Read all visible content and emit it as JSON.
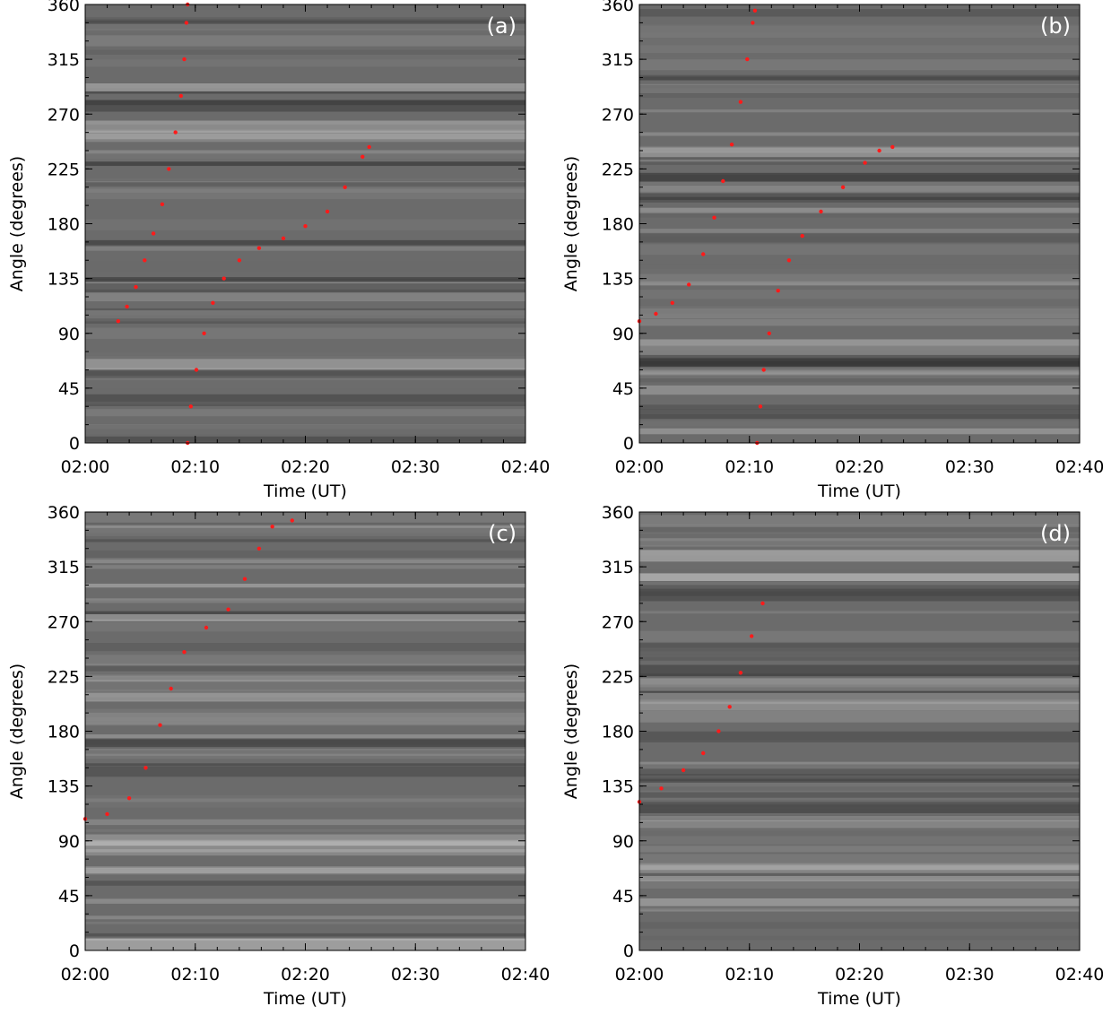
{
  "figure": {
    "background": "#ffffff",
    "map_color": "#6b6b6b",
    "track_color": "#ff1a1a"
  },
  "chart_data": [
    {
      "type": "scatter",
      "panel_label": "(a)",
      "xlabel": "Time (UT)",
      "ylabel": "Angle (degrees)",
      "xlim": [
        "02:00",
        "02:40"
      ],
      "ylim": [
        0,
        360
      ],
      "xticks": [
        "02:00",
        "02:10",
        "02:20",
        "02:30",
        "02:40"
      ],
      "yticks": [
        "0",
        "45",
        "90",
        "135",
        "180",
        "225",
        "270",
        "315",
        "360"
      ],
      "series": [
        {
          "points": [
            [
              3.0,
              100
            ],
            [
              3.8,
              112
            ],
            [
              4.6,
              128
            ],
            [
              5.4,
              150
            ],
            [
              6.2,
              172
            ],
            [
              7.0,
              196
            ],
            [
              7.6,
              225
            ],
            [
              8.2,
              255
            ],
            [
              8.7,
              285
            ],
            [
              9.0,
              315
            ],
            [
              9.2,
              345
            ],
            [
              9.3,
              360
            ]
          ]
        },
        {
          "points": [
            [
              9.3,
              0
            ],
            [
              9.6,
              30
            ],
            [
              10.1,
              60
            ],
            [
              10.8,
              90
            ],
            [
              11.6,
              115
            ],
            [
              12.6,
              135
            ],
            [
              14.0,
              150
            ],
            [
              15.8,
              160
            ],
            [
              18.0,
              168
            ],
            [
              20.0,
              178
            ],
            [
              22.0,
              190
            ],
            [
              23.6,
              210
            ],
            [
              25.2,
              235
            ],
            [
              25.8,
              243
            ]
          ]
        }
      ]
    },
    {
      "type": "scatter",
      "panel_label": "(b)",
      "xlabel": "Time (UT)",
      "ylabel": "Angle (degrees)",
      "xlim": [
        "02:00",
        "02:40"
      ],
      "ylim": [
        0,
        360
      ],
      "xticks": [
        "02:00",
        "02:10",
        "02:20",
        "02:30",
        "02:40"
      ],
      "yticks": [
        "0",
        "45",
        "90",
        "135",
        "180",
        "225",
        "270",
        "315",
        "360"
      ],
      "series": [
        {
          "points": [
            [
              0.0,
              100
            ],
            [
              1.5,
              106
            ],
            [
              3.0,
              115
            ],
            [
              4.5,
              130
            ],
            [
              5.8,
              155
            ],
            [
              6.8,
              185
            ],
            [
              7.6,
              215
            ],
            [
              8.4,
              245
            ],
            [
              9.2,
              280
            ],
            [
              9.8,
              315
            ],
            [
              10.3,
              345
            ],
            [
              10.5,
              355
            ]
          ]
        },
        {
          "points": [
            [
              10.7,
              0
            ],
            [
              11.0,
              30
            ],
            [
              11.3,
              60
            ],
            [
              11.8,
              90
            ],
            [
              12.6,
              125
            ],
            [
              13.6,
              150
            ],
            [
              14.8,
              170
            ],
            [
              16.5,
              190
            ],
            [
              18.5,
              210
            ],
            [
              20.5,
              230
            ],
            [
              21.8,
              240
            ],
            [
              23.0,
              243
            ]
          ]
        }
      ]
    },
    {
      "type": "scatter",
      "panel_label": "(c)",
      "xlabel": "Time (UT)",
      "ylabel": "Angle (degrees)",
      "xlim": [
        "02:00",
        "02:40"
      ],
      "ylim": [
        0,
        360
      ],
      "xticks": [
        "02:00",
        "02:10",
        "02:20",
        "02:30",
        "02:40"
      ],
      "yticks": [
        "0",
        "45",
        "90",
        "135",
        "180",
        "225",
        "270",
        "315",
        "360"
      ],
      "series": [
        {
          "points": [
            [
              0.0,
              108
            ],
            [
              2.0,
              112
            ],
            [
              4.0,
              125
            ],
            [
              5.5,
              150
            ],
            [
              6.8,
              185
            ],
            [
              7.8,
              215
            ],
            [
              9.0,
              245
            ],
            [
              11.0,
              265
            ],
            [
              13.0,
              280
            ],
            [
              14.5,
              305
            ],
            [
              15.8,
              330
            ],
            [
              17.0,
              348
            ],
            [
              18.8,
              353
            ]
          ]
        }
      ]
    },
    {
      "type": "scatter",
      "panel_label": "(d)",
      "xlabel": "Time (UT)",
      "ylabel": "Angle (degrees)",
      "xlim": [
        "02:00",
        "02:40"
      ],
      "ylim": [
        0,
        360
      ],
      "xticks": [
        "02:00",
        "02:10",
        "02:20",
        "02:30",
        "02:40"
      ],
      "yticks": [
        "0",
        "45",
        "90",
        "135",
        "180",
        "225",
        "270",
        "315",
        "360"
      ],
      "series": [
        {
          "points": [
            [
              0.0,
              122
            ],
            [
              2.0,
              133
            ],
            [
              4.0,
              148
            ],
            [
              5.8,
              162
            ],
            [
              7.2,
              180
            ],
            [
              8.2,
              200
            ],
            [
              9.2,
              228
            ],
            [
              10.2,
              258
            ],
            [
              11.2,
              285
            ]
          ]
        }
      ]
    }
  ]
}
